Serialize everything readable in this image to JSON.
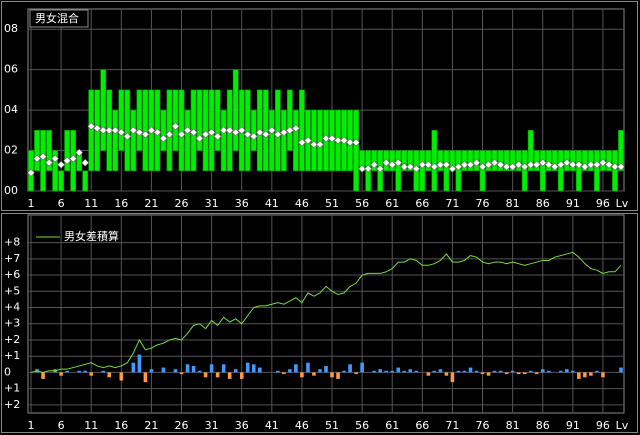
{
  "chart_data": [
    {
      "type": "range-bar",
      "title": "男女混合",
      "color": "#00ee00",
      "marker_color": "#ffffff",
      "x": [
        1,
        2,
        3,
        4,
        5,
        6,
        7,
        8,
        9,
        10,
        11,
        12,
        13,
        14,
        15,
        16,
        17,
        18,
        19,
        20,
        21,
        22,
        23,
        24,
        25,
        26,
        27,
        28,
        29,
        30,
        31,
        32,
        33,
        34,
        35,
        36,
        37,
        38,
        39,
        40,
        41,
        42,
        43,
        44,
        45,
        46,
        47,
        48,
        49,
        50,
        51,
        52,
        53,
        54,
        55,
        56,
        57,
        58,
        59,
        60,
        61,
        62,
        63,
        64,
        65,
        66,
        67,
        68,
        69,
        70,
        71,
        72,
        73,
        74,
        75,
        76,
        77,
        78,
        79,
        80,
        81,
        82,
        83,
        84,
        85,
        86,
        87,
        88,
        89,
        90,
        91,
        92,
        93,
        94,
        95,
        96,
        97,
        98,
        99
      ],
      "lows": [
        0,
        1,
        0,
        1,
        0,
        0,
        1,
        0,
        1,
        0,
        1,
        1,
        2,
        1,
        1,
        2,
        1,
        1,
        2,
        1,
        1,
        1,
        2,
        1,
        2,
        1,
        1,
        1,
        2,
        1,
        1,
        2,
        1,
        1,
        2,
        1,
        1,
        2,
        1,
        1,
        1,
        1,
        1,
        2,
        1,
        1,
        1,
        1,
        1,
        1,
        1,
        1,
        1,
        1,
        0,
        1,
        0,
        1,
        0,
        1,
        1,
        0,
        1,
        1,
        0,
        0,
        1,
        0,
        1,
        0,
        1,
        0,
        1,
        1,
        1,
        0,
        1,
        1,
        1,
        1,
        1,
        1,
        0,
        1,
        1,
        0,
        1,
        1,
        0,
        1,
        1,
        0,
        1,
        1,
        0,
        1,
        1,
        0,
        1
      ],
      "highs": [
        2,
        3,
        3,
        3,
        2,
        1,
        3,
        3,
        2,
        1,
        5,
        5,
        6,
        5,
        4,
        5,
        5,
        4,
        5,
        5,
        5,
        5,
        4,
        5,
        5,
        5,
        4,
        5,
        5,
        5,
        5,
        5,
        4,
        5,
        6,
        5,
        5,
        4,
        5,
        5,
        4,
        5,
        4,
        5,
        4,
        5,
        4,
        4,
        4,
        4,
        4,
        4,
        4,
        4,
        4,
        2,
        2,
        2,
        2,
        2,
        2,
        2,
        2,
        2,
        2,
        2,
        2,
        3,
        2,
        2,
        2,
        2,
        2,
        2,
        2,
        2,
        2,
        2,
        2,
        2,
        2,
        2,
        2,
        3,
        2,
        2,
        2,
        2,
        2,
        2,
        2,
        2,
        2,
        2,
        2,
        2,
        2,
        2,
        3
      ],
      "avg": [
        0.9,
        1.6,
        1.7,
        1.4,
        1.6,
        1.3,
        1.5,
        1.6,
        1.9,
        1.4,
        3.2,
        3.1,
        3.0,
        3.0,
        3.0,
        2.9,
        2.7,
        3.0,
        2.9,
        2.8,
        3.0,
        2.9,
        2.6,
        2.8,
        3.2,
        2.8,
        3.0,
        2.9,
        2.6,
        2.8,
        2.9,
        2.7,
        3.0,
        3.0,
        2.9,
        3.0,
        2.8,
        2.7,
        2.9,
        2.8,
        3.0,
        2.8,
        2.9,
        3.0,
        3.1,
        2.4,
        2.5,
        2.3,
        2.3,
        2.6,
        2.6,
        2.5,
        2.5,
        2.4,
        2.4,
        1.1,
        1.1,
        1.3,
        1.1,
        1.4,
        1.3,
        1.4,
        1.2,
        1.2,
        1.1,
        1.3,
        1.3,
        1.2,
        1.3,
        1.3,
        1.1,
        1.2,
        1.3,
        1.3,
        1.4,
        1.2,
        1.3,
        1.4,
        1.3,
        1.2,
        1.2,
        1.3,
        1.2,
        1.3,
        1.3,
        1.4,
        1.3,
        1.2,
        1.3,
        1.4,
        1.3,
        1.3,
        1.2,
        1.3,
        1.3,
        1.4,
        1.3,
        1.2,
        1.2
      ],
      "xlim": [
        0.5,
        99.5
      ],
      "xticks": [
        1,
        6,
        11,
        16,
        21,
        26,
        31,
        36,
        41,
        46,
        51,
        56,
        61,
        66,
        71,
        76,
        81,
        86,
        91,
        96
      ],
      "x_label": "Lv",
      "ylim": [
        0,
        9
      ],
      "yticks": [
        {
          "value": 0,
          "label": "00"
        },
        {
          "value": 2,
          "label": "02"
        },
        {
          "value": 4,
          "label": "04"
        },
        {
          "value": 6,
          "label": "06"
        },
        {
          "value": 8,
          "label": "08"
        }
      ],
      "grid": true
    },
    {
      "type": "line-bar",
      "positive_color": "#4499ff",
      "negative_color": "#ff9944",
      "x": [
        1,
        2,
        3,
        4,
        5,
        6,
        7,
        8,
        9,
        10,
        11,
        12,
        13,
        14,
        15,
        16,
        17,
        18,
        19,
        20,
        21,
        22,
        23,
        24,
        25,
        26,
        27,
        28,
        29,
        30,
        31,
        32,
        33,
        34,
        35,
        36,
        37,
        38,
        39,
        40,
        41,
        42,
        43,
        44,
        45,
        46,
        47,
        48,
        49,
        50,
        51,
        52,
        53,
        54,
        55,
        56,
        57,
        58,
        59,
        60,
        61,
        62,
        63,
        64,
        65,
        66,
        67,
        68,
        69,
        70,
        71,
        72,
        73,
        74,
        75,
        76,
        77,
        78,
        79,
        80,
        81,
        82,
        83,
        84,
        85,
        86,
        87,
        88,
        89,
        90,
        91,
        92,
        93,
        94,
        95,
        96,
        97,
        98,
        99
      ],
      "bars": [
        0,
        0.2,
        -0.4,
        0,
        0.2,
        -0.2,
        0.1,
        0,
        0.1,
        0.1,
        -0.2,
        0,
        0.1,
        -0.3,
        0,
        -0.5,
        0,
        0.6,
        1.1,
        -0.6,
        0.2,
        0,
        0.3,
        0,
        0.2,
        -0.1,
        0.5,
        0.4,
        0.1,
        -0.3,
        0.5,
        -0.3,
        0.5,
        -0.4,
        0.2,
        -0.4,
        0.6,
        0.5,
        0.3,
        0,
        0,
        0.1,
        -0.1,
        0.2,
        0.5,
        -0.3,
        0.6,
        -0.2,
        0.2,
        0.4,
        -0.3,
        -0.4,
        0.1,
        0.5,
        -0.1,
        0.6,
        0,
        0.1,
        0.2,
        0.1,
        0.1,
        0.3,
        0.1,
        0.2,
        0.1,
        0,
        -0.2,
        0.1,
        0.2,
        -0.2,
        -0.6,
        0.1,
        0.1,
        0.3,
        0.1,
        -0.1,
        -0.2,
        0.1,
        0.1,
        -0.1,
        0.1,
        -0.1,
        -0.1,
        0.1,
        -0.1,
        0.2,
        0.1,
        0,
        0.1,
        0.2,
        0.1,
        -0.4,
        -0.3,
        -0.2,
        0.1,
        -0.3,
        0,
        0,
        0.3
      ],
      "series": [
        {
          "name": "男女差積算",
          "color": "#77dd44",
          "values": [
            0,
            0.1,
            0,
            0.1,
            0.1,
            0.2,
            0.2,
            0.3,
            0.4,
            0.5,
            0.6,
            0.4,
            0.3,
            0.4,
            0.3,
            0.4,
            0.6,
            1.2,
            2.0,
            1.4,
            1.5,
            1.7,
            1.8,
            2.0,
            2.1,
            2.0,
            2.4,
            2.9,
            3.0,
            2.7,
            3.2,
            2.9,
            3.4,
            3.1,
            3.3,
            3.0,
            3.5,
            4.0,
            4.1,
            4.1,
            4.2,
            4.3,
            4.2,
            4.4,
            4.6,
            4.3,
            4.9,
            4.7,
            4.9,
            5.3,
            5.0,
            4.8,
            4.9,
            5.3,
            5.5,
            6.0,
            6.1,
            6.1,
            6.1,
            6.2,
            6.4,
            6.8,
            6.8,
            7.0,
            6.9,
            6.6,
            6.6,
            6.7,
            6.9,
            7.3,
            6.8,
            6.8,
            6.9,
            7.2,
            7.1,
            6.8,
            6.7,
            6.8,
            6.8,
            6.7,
            6.8,
            6.7,
            6.6,
            6.7,
            6.8,
            6.9,
            6.9,
            7.1,
            7.2,
            7.3,
            7.4,
            7.1,
            6.7,
            6.4,
            6.3,
            6.1,
            6.2,
            6.2,
            6.6
          ]
        }
      ],
      "xlim": [
        0.5,
        99.5
      ],
      "xticks": [
        1,
        6,
        11,
        16,
        21,
        26,
        31,
        36,
        41,
        46,
        51,
        56,
        61,
        66,
        71,
        76,
        81,
        86,
        91,
        96
      ],
      "x_label": "Lv",
      "ylim": [
        -2.5,
        9.7
      ],
      "yticks": [
        {
          "value": 8,
          "label": "+8"
        },
        {
          "value": 7,
          "label": "+7"
        },
        {
          "value": 6,
          "label": "+6"
        },
        {
          "value": 5,
          "label": "+5"
        },
        {
          "value": 4,
          "label": "+4"
        },
        {
          "value": 3,
          "label": "+3"
        },
        {
          "value": 2,
          "label": "+2"
        },
        {
          "value": 1,
          "label": "+1"
        },
        0,
        {
          "value": -1,
          "label": "+1"
        },
        {
          "value": -2,
          "label": "+2"
        }
      ],
      "grid": true
    }
  ]
}
